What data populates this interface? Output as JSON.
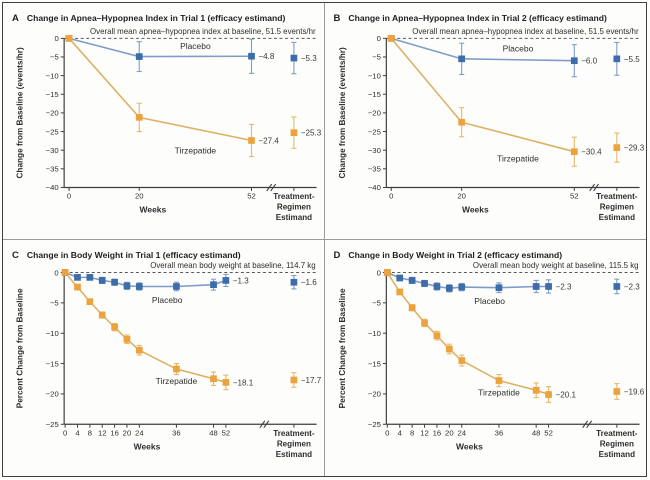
{
  "figure_title": "Tirzepatide trial results figure",
  "colors": {
    "background": "#fdfdfb",
    "frame_border": "#404040",
    "panel_divider": "#9b9b9b",
    "axis": "#3d3d3f",
    "text": "#2d2d2f",
    "value_label_text": "#39393b",
    "dashed_baseline": "#58585a",
    "series": {
      "placebo": {
        "marker": "#3d6cab",
        "line": "#7e9cc7",
        "error": "#7e9cc7"
      },
      "tirzepatide": {
        "marker": "#eda33d",
        "line": "#ddb063",
        "error": "#e6b766"
      }
    }
  },
  "chart_data": [
    {
      "type": "line",
      "kind": "apnea",
      "panel_label": "A",
      "title": "Change in Apnea–Hypopnea Index in Trial 1 (efficacy estimand)",
      "annotation": "Overall mean apnea–hypopnea index at baseline, 51.5 events/hr",
      "xlabel": "Weeks",
      "ylabel": "Change from Baseline (events/hr)",
      "ylim": [
        -40,
        0
      ],
      "ytick_step": 5,
      "weeks": [
        0,
        20,
        52
      ],
      "estimand_axis_label": [
        "Treatment-",
        "Regimen",
        "Estimand"
      ],
      "series": [
        {
          "name": "Placebo",
          "key": "placebo",
          "values": [
            0,
            -4.9,
            -4.8
          ],
          "errors": [
            0,
            4.0,
            4.6
          ],
          "end_label": "−4.8",
          "estimand_value": -5.3,
          "estimand_error": 4.2,
          "estimand_label": "−5.3"
        },
        {
          "name": "Tirzepatide",
          "key": "tirzepatide",
          "values": [
            0,
            -21.2,
            -27.4
          ],
          "errors": [
            0,
            3.8,
            4.3
          ],
          "end_label": "−27.4",
          "estimand_value": -25.3,
          "estimand_error": 4.2,
          "estimand_label": "−25.3"
        }
      ]
    },
    {
      "type": "line",
      "kind": "apnea",
      "panel_label": "B",
      "title": "Change in Apnea–Hypopnea Index in Trial 2 (efficacy estimand)",
      "annotation": "Overall mean apnea–hypopnea index at baseline, 51.5 events/hr",
      "xlabel": "Weeks",
      "ylabel": "Change from Baseline (events/hr)",
      "ylim": [
        -40,
        0
      ],
      "ytick_step": 5,
      "weeks": [
        0,
        20,
        52
      ],
      "estimand_axis_label": [
        "Treatment-",
        "Regimen",
        "Estimand"
      ],
      "series": [
        {
          "name": "Placebo",
          "key": "placebo",
          "values": [
            0,
            -5.5,
            -6.0
          ],
          "errors": [
            0,
            4.2,
            4.3
          ],
          "end_label": "−6.0",
          "estimand_value": -5.5,
          "estimand_error": 4.4,
          "estimand_label": "−5.5"
        },
        {
          "name": "Tirzepatide",
          "key": "tirzepatide",
          "values": [
            0,
            -22.5,
            -30.4
          ],
          "errors": [
            0,
            3.9,
            3.9
          ],
          "end_label": "−30.4",
          "estimand_value": -29.3,
          "estimand_error": 3.9,
          "estimand_label": "−29.3"
        }
      ]
    },
    {
      "type": "line",
      "kind": "weight",
      "panel_label": "C",
      "title": "Change in Body Weight in Trial 1 (efficacy estimand)",
      "annotation": "Overall mean body weight at baseline, 114.7 kg",
      "xlabel": "Weeks",
      "ylabel": "Percent Change from Baseline",
      "ylim": [
        -25,
        0
      ],
      "ytick_step": 5,
      "weeks": [
        0,
        4,
        8,
        12,
        16,
        20,
        24,
        36,
        48,
        52
      ],
      "estimand_axis_label": [
        "Treatment-",
        "Regimen",
        "Estimand"
      ],
      "series": [
        {
          "name": "Placebo",
          "key": "placebo",
          "values": [
            0,
            -0.8,
            -0.8,
            -1.3,
            -1.6,
            -2.2,
            -2.3,
            -2.3,
            -2.0,
            -1.3
          ],
          "errors": [
            0,
            0.4,
            0.4,
            0.5,
            0.5,
            0.6,
            0.6,
            0.7,
            0.9,
            1.0
          ],
          "end_label": "−1.3",
          "estimand_value": -1.6,
          "estimand_error": 1.1,
          "estimand_label": "−1.6"
        },
        {
          "name": "Tirzepatide",
          "key": "tirzepatide",
          "values": [
            0,
            -2.4,
            -4.8,
            -7.0,
            -9.0,
            -11.0,
            -12.8,
            -15.9,
            -17.5,
            -18.1
          ],
          "errors": [
            0,
            0.3,
            0.4,
            0.5,
            0.6,
            0.7,
            0.8,
            0.9,
            1.1,
            1.2
          ],
          "end_label": "−18.1",
          "estimand_value": -17.7,
          "estimand_error": 1.2,
          "estimand_label": "−17.7"
        }
      ]
    },
    {
      "type": "line",
      "kind": "weight",
      "panel_label": "D",
      "title": "Change in Body Weight in Trial 2 (efficacy estimand)",
      "annotation": "Overall mean body weight at baseline, 115.5 kg",
      "xlabel": "Weeks",
      "ylabel": "Percent Change from Baseline",
      "ylim": [
        -25,
        0
      ],
      "ytick_step": 5,
      "weeks": [
        0,
        4,
        8,
        12,
        16,
        20,
        24,
        36,
        48,
        52
      ],
      "estimand_axis_label": [
        "Treatment-",
        "Regimen",
        "Estimand"
      ],
      "series": [
        {
          "name": "Placebo",
          "key": "placebo",
          "values": [
            0,
            -0.9,
            -1.3,
            -1.8,
            -2.3,
            -2.6,
            -2.4,
            -2.5,
            -2.3,
            -2.3
          ],
          "errors": [
            0,
            0.4,
            0.5,
            0.5,
            0.6,
            0.6,
            0.6,
            0.8,
            1.0,
            1.1
          ],
          "end_label": "−2.3",
          "estimand_value": -2.3,
          "estimand_error": 1.2,
          "estimand_label": "−2.3"
        },
        {
          "name": "Tirzepatide",
          "key": "tirzepatide",
          "values": [
            0,
            -3.2,
            -5.8,
            -8.3,
            -10.4,
            -12.6,
            -14.5,
            -17.8,
            -19.4,
            -20.1
          ],
          "errors": [
            0,
            0.4,
            0.5,
            0.6,
            0.7,
            0.8,
            0.9,
            1.0,
            1.2,
            1.3
          ],
          "end_label": "−20.1",
          "estimand_value": -19.6,
          "estimand_error": 1.3,
          "estimand_label": "−19.6"
        }
      ]
    }
  ]
}
